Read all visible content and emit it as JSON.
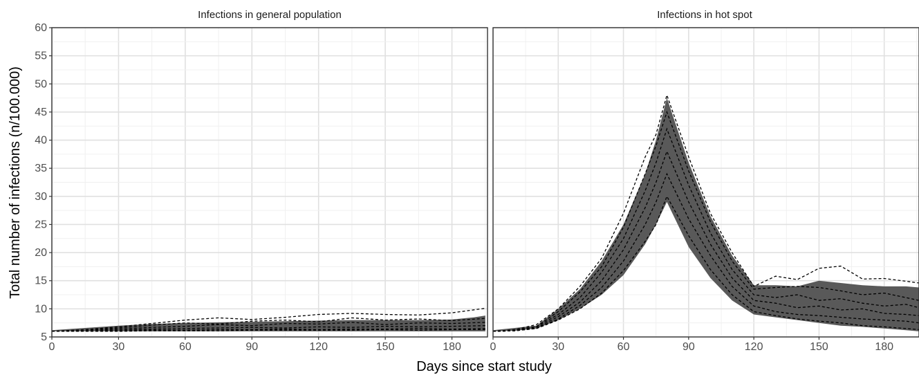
{
  "chart_data": {
    "type": "line",
    "xlabel": "Days since start study",
    "ylabel": "Total number of infections (n/100.000)",
    "xlim": [
      0,
      196
    ],
    "ylim": [
      5,
      60
    ],
    "x_ticks": [
      0,
      30,
      60,
      90,
      120,
      150,
      180
    ],
    "y_ticks": [
      5,
      10,
      15,
      20,
      25,
      30,
      35,
      40,
      45,
      50,
      55,
      60
    ],
    "grid": true,
    "ribbon_color": "#595959",
    "line_color": "#000000",
    "panels": [
      {
        "title": "Infections in general population",
        "band": {
          "x": [
            0,
            15,
            30,
            45,
            60,
            75,
            90,
            105,
            120,
            135,
            150,
            165,
            180,
            190,
            195
          ],
          "lower": [
            6.0,
            6.0,
            6.0,
            6.0,
            6.0,
            6.0,
            6.0,
            6.0,
            6.0,
            6.0,
            6.0,
            6.0,
            6.0,
            6.0,
            6.0
          ],
          "upper": [
            6.2,
            6.6,
            7.0,
            7.3,
            7.5,
            7.6,
            7.7,
            7.8,
            7.9,
            8.0,
            8.0,
            8.0,
            8.1,
            8.5,
            8.8
          ]
        },
        "series": [
          {
            "x": [
              0,
              15,
              30,
              45,
              60,
              75,
              90,
              105,
              120,
              135,
              150,
              165,
              180,
              195
            ],
            "y": [
              6.0,
              6.3,
              6.8,
              7.4,
              8.0,
              8.4,
              8.1,
              8.5,
              9.0,
              9.2,
              9.0,
              8.9,
              9.3,
              10.1
            ]
          },
          {
            "x": [
              0,
              15,
              30,
              45,
              60,
              75,
              90,
              105,
              120,
              135,
              150,
              165,
              180,
              195
            ],
            "y": [
              6.0,
              6.2,
              6.6,
              7.1,
              7.5,
              7.3,
              7.8,
              8.0,
              7.7,
              8.4,
              8.0,
              8.2,
              7.9,
              8.3
            ]
          },
          {
            "x": [
              0,
              15,
              30,
              45,
              60,
              75,
              90,
              105,
              120,
              135,
              150,
              165,
              180,
              195
            ],
            "y": [
              6.0,
              6.1,
              6.4,
              6.7,
              6.9,
              7.2,
              7.0,
              7.4,
              7.3,
              7.6,
              7.2,
              7.5,
              7.4,
              7.6
            ]
          },
          {
            "x": [
              0,
              15,
              30,
              45,
              60,
              75,
              90,
              105,
              120,
              135,
              150,
              165,
              180,
              195
            ],
            "y": [
              6.0,
              6.1,
              6.2,
              6.4,
              6.5,
              6.6,
              6.7,
              6.6,
              6.8,
              6.7,
              6.9,
              6.8,
              6.9,
              7.0
            ]
          },
          {
            "x": [
              0,
              15,
              30,
              45,
              60,
              75,
              90,
              105,
              120,
              135,
              150,
              165,
              180,
              195
            ],
            "y": [
              6.0,
              6.0,
              6.1,
              6.2,
              6.2,
              6.3,
              6.3,
              6.4,
              6.3,
              6.4,
              6.4,
              6.5,
              6.4,
              6.5
            ]
          },
          {
            "x": [
              0,
              15,
              30,
              45,
              60,
              75,
              90,
              105,
              120,
              135,
              150,
              165,
              180,
              195
            ],
            "y": [
              6.0,
              6.0,
              6.0,
              6.1,
              6.1,
              6.1,
              6.2,
              6.2,
              6.2,
              6.2,
              6.3,
              6.2,
              6.3,
              6.3
            ]
          }
        ]
      },
      {
        "title": "Infections in hot spot",
        "band": {
          "x": [
            0,
            10,
            20,
            30,
            40,
            50,
            60,
            70,
            75,
            80,
            90,
            100,
            110,
            120,
            130,
            140,
            150,
            160,
            170,
            180,
            190,
            196
          ],
          "lower": [
            6.0,
            6.1,
            6.5,
            8.0,
            10.0,
            12.5,
            16.0,
            21.5,
            25.0,
            29.0,
            21.0,
            15.5,
            11.5,
            9.0,
            8.5,
            8.0,
            7.5,
            7.0,
            6.8,
            6.5,
            6.2,
            6.0
          ],
          "upper": [
            6.2,
            6.6,
            7.0,
            10.0,
            13.5,
            18.5,
            25.0,
            34.0,
            40.0,
            47.5,
            36.0,
            26.5,
            19.5,
            14.2,
            14.2,
            14.0,
            15.0,
            14.6,
            14.2,
            14.0,
            14.0,
            13.8
          ]
        },
        "series": [
          {
            "x": [
              0,
              10,
              20,
              30,
              40,
              50,
              60,
              70,
              75,
              80,
              90,
              100,
              110,
              120,
              130,
              140,
              150,
              160,
              170,
              180,
              190,
              196
            ],
            "y": [
              6.0,
              6.3,
              7.2,
              10.0,
              14.0,
              19.0,
              27.0,
              37.0,
              41.0,
              48.0,
              37.0,
              27.0,
              20.0,
              14.0,
              15.8,
              15.2,
              17.2,
              17.6,
              15.3,
              15.4,
              14.9,
              14.6
            ]
          },
          {
            "x": [
              0,
              10,
              20,
              30,
              40,
              50,
              60,
              70,
              75,
              80,
              90,
              100,
              110,
              120,
              130,
              140,
              150,
              160,
              170,
              180,
              190,
              196
            ],
            "y": [
              6.0,
              6.2,
              6.9,
              9.5,
              13.0,
              17.5,
              24.5,
              34.0,
              39.0,
              45.0,
              34.5,
              25.5,
              18.5,
              13.5,
              13.8,
              14.0,
              13.8,
              13.2,
              12.5,
              12.8,
              12.0,
              11.5
            ]
          },
          {
            "x": [
              0,
              10,
              20,
              30,
              40,
              50,
              60,
              70,
              75,
              80,
              90,
              100,
              110,
              120,
              130,
              140,
              150,
              160,
              170,
              180,
              190,
              196
            ],
            "y": [
              6.0,
              6.2,
              6.8,
              9.0,
              12.0,
              16.5,
              22.5,
              31.0,
              36.0,
              42.0,
              32.0,
              23.5,
              17.0,
              12.5,
              12.0,
              12.5,
              11.5,
              11.8,
              11.0,
              10.5,
              10.8,
              10.2
            ]
          },
          {
            "x": [
              0,
              10,
              20,
              30,
              40,
              50,
              60,
              70,
              75,
              80,
              90,
              100,
              110,
              120,
              130,
              140,
              150,
              160,
              170,
              180,
              190,
              196
            ],
            "y": [
              6.0,
              6.1,
              6.6,
              8.6,
              11.2,
              15.0,
              20.5,
              28.0,
              32.5,
              38.0,
              29.0,
              21.5,
              15.5,
              11.5,
              11.0,
              10.2,
              10.5,
              9.8,
              10.0,
              9.2,
              9.0,
              8.8
            ]
          },
          {
            "x": [
              0,
              10,
              20,
              30,
              40,
              50,
              60,
              70,
              75,
              80,
              90,
              100,
              110,
              120,
              130,
              140,
              150,
              160,
              170,
              180,
              190,
              196
            ],
            "y": [
              6.0,
              6.1,
              6.5,
              8.2,
              10.6,
              13.8,
              18.5,
              25.0,
              29.0,
              34.0,
              26.0,
              19.5,
              14.0,
              10.5,
              9.5,
              9.0,
              8.8,
              8.5,
              8.2,
              8.0,
              7.8,
              7.5
            ]
          },
          {
            "x": [
              0,
              10,
              20,
              30,
              40,
              50,
              60,
              70,
              75,
              80,
              90,
              100,
              110,
              120,
              130,
              140,
              150,
              160,
              170,
              180,
              190,
              196
            ],
            "y": [
              6.0,
              6.1,
              6.5,
              8.0,
              10.0,
              12.8,
              16.8,
              22.0,
              25.0,
              30.0,
              23.0,
              17.0,
              12.5,
              9.5,
              8.8,
              8.2,
              7.8,
              7.5,
              7.0,
              6.8,
              6.5,
              6.3
            ]
          }
        ]
      }
    ]
  }
}
